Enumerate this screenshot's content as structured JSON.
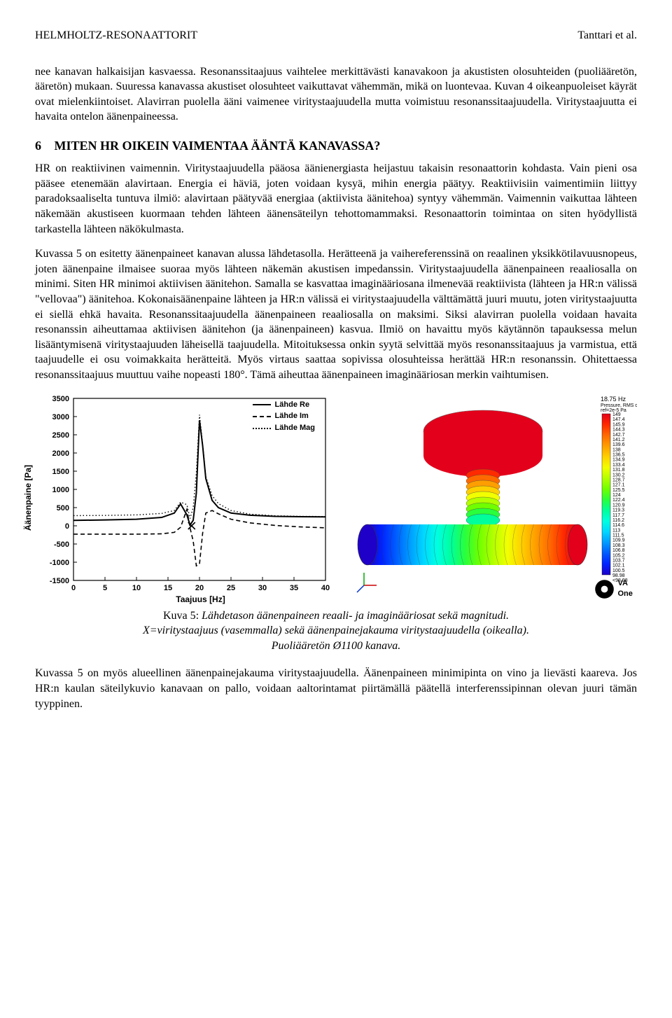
{
  "header": {
    "left": "HELMHOLTZ-RESONAATTORIT",
    "right": "Tanttari et al."
  },
  "para1": "nee kanavan halkaisijan kasvaessa. Resonanssitaajuus vaihtelee merkittävästi kanavakoon ja akustisten olosuhteiden (puoliääretön, ääretön) mukaan. Suuressa kanavassa akustiset olosuhteet vaikuttavat vähemmän, mikä on luontevaa. Kuvan 4 oikeanpuoleiset käyrät ovat mielenkiintoiset. Alavirran puolella ääni vaimenee viritystaajuudella mutta voimistuu resonanssitaajuudella. Viritystaajuutta ei havaita ontelon äänenpaineessa.",
  "section6": {
    "num": "6",
    "title": "MITEN HR OIKEIN VAIMENTAA ÄÄNTÄ KANAVASSA?"
  },
  "para2": "HR on reaktiivinen vaimennin. Viritystaajuudella pääosa äänienergiasta heijastuu takaisin resonaattorin kohdasta. Vain pieni osa pääsee etenemään alavirtaan. Energia ei häviä, joten voidaan kysyä, mihin energia päätyy. Reaktiivisiin vaimentimiin liittyy paradoksaaliselta tuntuva ilmiö: alavirtaan päätyvää energiaa (aktiivista äänitehoa) syntyy vähemmän. Vaimennin vaikuttaa lähteen näkemään akustiseen kuormaan tehden lähteen äänensäteilyn tehottomammaksi. Resonaattorin toimintaa on siten hyödyllistä tarkastella lähteen näkökulmasta.",
  "para3": "Kuvassa 5 on esitetty äänenpaineet kanavan alussa lähdetasolla. Herätteenä ja vaihereferenssinä on reaalinen yksikkötilavuusnopeus, joten äänenpaine ilmaisee suoraa myös lähteen näkemän akustisen impedanssin. Viritystaajuudella äänenpaineen reaaliosalla on minimi. Siten HR minimoi aktiivisen äänitehon. Samalla se kasvattaa imaginääriosana ilmenevää reaktiivista (lähteen ja HR:n välissä \"vellovaa\") äänitehoa. Kokonaisäänenpaine lähteen ja HR:n välissä ei viritystaajuudella välttämättä juuri muutu, joten viritystaajuutta ei siellä ehkä havaita. Resonanssitaajuudella äänenpaineen reaaliosalla on maksimi. Siksi alavirran puolella voidaan havaita resonanssin aiheuttamaa aktiivisen äänitehon (ja äänenpaineen) kasvua. Ilmiö on havaittu myös käytännön tapauksessa melun lisääntymisenä viritystaajuuden läheisellä taajuudella. Mitoituksessa onkin syytä selvittää myös resonanssitaajuus ja varmistua, että taajuudelle ei osu voimakkaita herätteitä. Myös virtaus saattaa sopivissa olosuhteissa herättää HR:n resonanssin. Ohitettaessa resonanssitaajuus muuttuu vaihe nopeasti 180°. Tämä aiheuttaa äänenpaineen imaginääriosan merkin vaihtumisen.",
  "chart": {
    "type": "line",
    "xlabel": "Taajuus [Hz]",
    "ylabel": "Äänenpaine [Pa]",
    "xlim": [
      0,
      40
    ],
    "xtick_step": 5,
    "ylim": [
      -1500,
      3500
    ],
    "ytick_step": 500,
    "marker_x": 18.75,
    "background_color": "#ffffff",
    "axis_color": "#000000",
    "tick_fontsize": 11,
    "label_fontsize": 12,
    "legend": [
      {
        "label": "Lähde Re",
        "style": "solid"
      },
      {
        "label": "Lähde Im",
        "style": "dash"
      },
      {
        "label": "Lähde Mag",
        "style": "dot"
      }
    ],
    "series": {
      "re": [
        [
          0,
          150
        ],
        [
          5,
          160
        ],
        [
          10,
          180
        ],
        [
          14,
          230
        ],
        [
          16,
          350
        ],
        [
          17,
          600
        ],
        [
          18,
          300
        ],
        [
          18.5,
          20
        ],
        [
          19,
          150
        ],
        [
          19.5,
          900
        ],
        [
          20,
          2900
        ],
        [
          20.5,
          2200
        ],
        [
          21,
          1300
        ],
        [
          22,
          700
        ],
        [
          23,
          500
        ],
        [
          25,
          350
        ],
        [
          28,
          290
        ],
        [
          32,
          260
        ],
        [
          36,
          250
        ],
        [
          40,
          245
        ]
      ],
      "im": [
        [
          0,
          -230
        ],
        [
          5,
          -230
        ],
        [
          10,
          -230
        ],
        [
          14,
          -220
        ],
        [
          16,
          -180
        ],
        [
          17,
          -40
        ],
        [
          18,
          450
        ],
        [
          18.5,
          -60
        ],
        [
          19,
          -420
        ],
        [
          19.5,
          -1100
        ],
        [
          20,
          -1050
        ],
        [
          20.5,
          -200
        ],
        [
          21,
          350
        ],
        [
          22,
          420
        ],
        [
          23,
          330
        ],
        [
          25,
          180
        ],
        [
          28,
          80
        ],
        [
          32,
          10
        ],
        [
          36,
          -30
        ],
        [
          40,
          -55
        ]
      ],
      "mag": [
        [
          0,
          280
        ],
        [
          5,
          285
        ],
        [
          10,
          300
        ],
        [
          14,
          340
        ],
        [
          16,
          420
        ],
        [
          17,
          650
        ],
        [
          18,
          580
        ],
        [
          18.5,
          200
        ],
        [
          19,
          500
        ],
        [
          19.5,
          1450
        ],
        [
          20,
          3050
        ],
        [
          20.5,
          2250
        ],
        [
          21,
          1350
        ],
        [
          22,
          830
        ],
        [
          23,
          610
        ],
        [
          25,
          420
        ],
        [
          28,
          320
        ],
        [
          32,
          275
        ],
        [
          36,
          260
        ],
        [
          40,
          255
        ]
      ]
    }
  },
  "sim": {
    "freq_label": "18.75 Hz",
    "qty_label": "Pressure, RMS dB",
    "ref_label": "ref=2e-5 Pa",
    "scale_max": 149,
    "scale_min": 98.98,
    "scale_below": "<98.98",
    "scale_steps": [
      149,
      147.4,
      145.9,
      144.3,
      142.7,
      141.2,
      139.6,
      138,
      136.5,
      134.9,
      133.4,
      131.8,
      130.2,
      128.7,
      127.1,
      125.5,
      124,
      122.4,
      120.9,
      119.3,
      117.7,
      116.2,
      114.6,
      113,
      111.5,
      109.9,
      108.3,
      106.8,
      105.2,
      103.7,
      102.1,
      100.5,
      98.98
    ],
    "colors_top_to_bottom": [
      "#e3001b",
      "#ff2a00",
      "#ff6a00",
      "#ff9e00",
      "#ffd000",
      "#f2ff00",
      "#b4ff00",
      "#70ff00",
      "#2aff3c",
      "#00ff9a",
      "#00ffe0",
      "#00d6ff",
      "#009aff",
      "#005aff",
      "#0022ff",
      "#1e00c8"
    ],
    "logo": "VA One"
  },
  "caption": {
    "lead": "Kuva 5:",
    "line1": "Lähdetason äänenpaineen reaali- ja imaginääriosat sekä magnitudi.",
    "line2": "X=viritystaajuus (vasemmalla) sekä äänenpainejakauma viritystaajuudella (oikealla).",
    "line3": "Puoliääretön Ø1100 kanava."
  },
  "para4": "Kuvassa 5 on myös alueellinen äänenpainejakauma viritystaajuudella. Äänenpaineen minimipinta on vino ja lievästi kaareva. Jos HR:n kaulan säteilykuvio kanavaan on pallo, voidaan aaltorintamat piirtämällä päätellä interferenssipinnan olevan juuri tämän tyyppinen."
}
